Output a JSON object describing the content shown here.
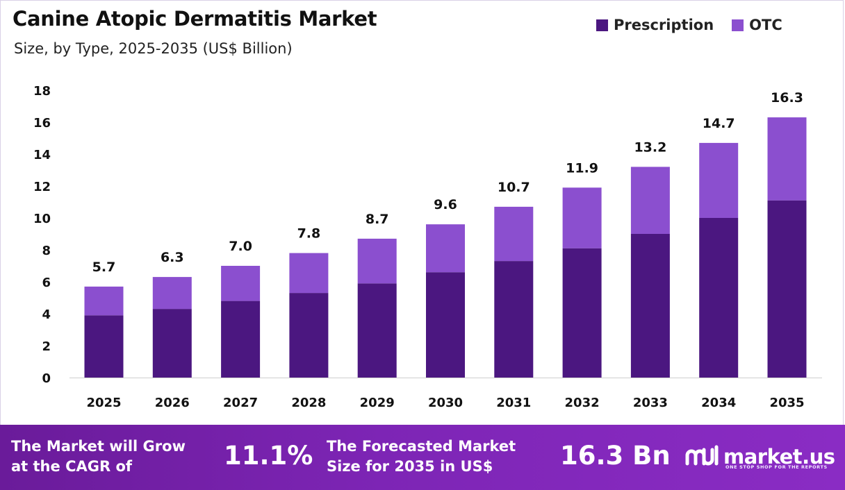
{
  "chart_data": {
    "type": "bar",
    "stacked": true,
    "title": "Canine Atopic Dermatitis Market",
    "subtitle": "Size, by Type, 2025-2035 (US$ Billion)",
    "categories": [
      "2025",
      "2026",
      "2027",
      "2028",
      "2029",
      "2030",
      "2031",
      "2032",
      "2033",
      "2034",
      "2035"
    ],
    "series": [
      {
        "name": "Prescription",
        "color": "#4b1780",
        "values": [
          3.9,
          4.3,
          4.8,
          5.3,
          5.9,
          6.6,
          7.3,
          8.1,
          9.0,
          10.0,
          11.1
        ]
      },
      {
        "name": "OTC",
        "color": "#8b4fcf",
        "values": [
          1.8,
          2.0,
          2.2,
          2.5,
          2.8,
          3.0,
          3.4,
          3.8,
          4.2,
          4.7,
          5.2
        ]
      }
    ],
    "totals": [
      "5.7",
      "6.3",
      "7.0",
      "7.8",
      "8.7",
      "9.6",
      "10.7",
      "11.9",
      "13.2",
      "14.7",
      "16.3"
    ],
    "yticks": [
      "0",
      "2",
      "4",
      "6",
      "8",
      "10",
      "12",
      "14",
      "16",
      "18"
    ],
    "ylim": [
      0,
      18
    ],
    "legend_position": "top-right",
    "grid": false
  },
  "banner": {
    "cagr_text_line1": "The Market will Grow",
    "cagr_text_line2": "at the CAGR of",
    "cagr_value": "11.1%",
    "forecast_text_line1": "The Forecasted Market",
    "forecast_text_line2": "Size for 2035 in US$",
    "forecast_value": "16.3 Bn",
    "logo_text": "market.us",
    "logo_tagline": "ONE STOP SHOP FOR THE REPORTS"
  },
  "colors": {
    "banner": "#7d25b5",
    "prescription": "#4b1780",
    "otc": "#8b4fcf"
  }
}
